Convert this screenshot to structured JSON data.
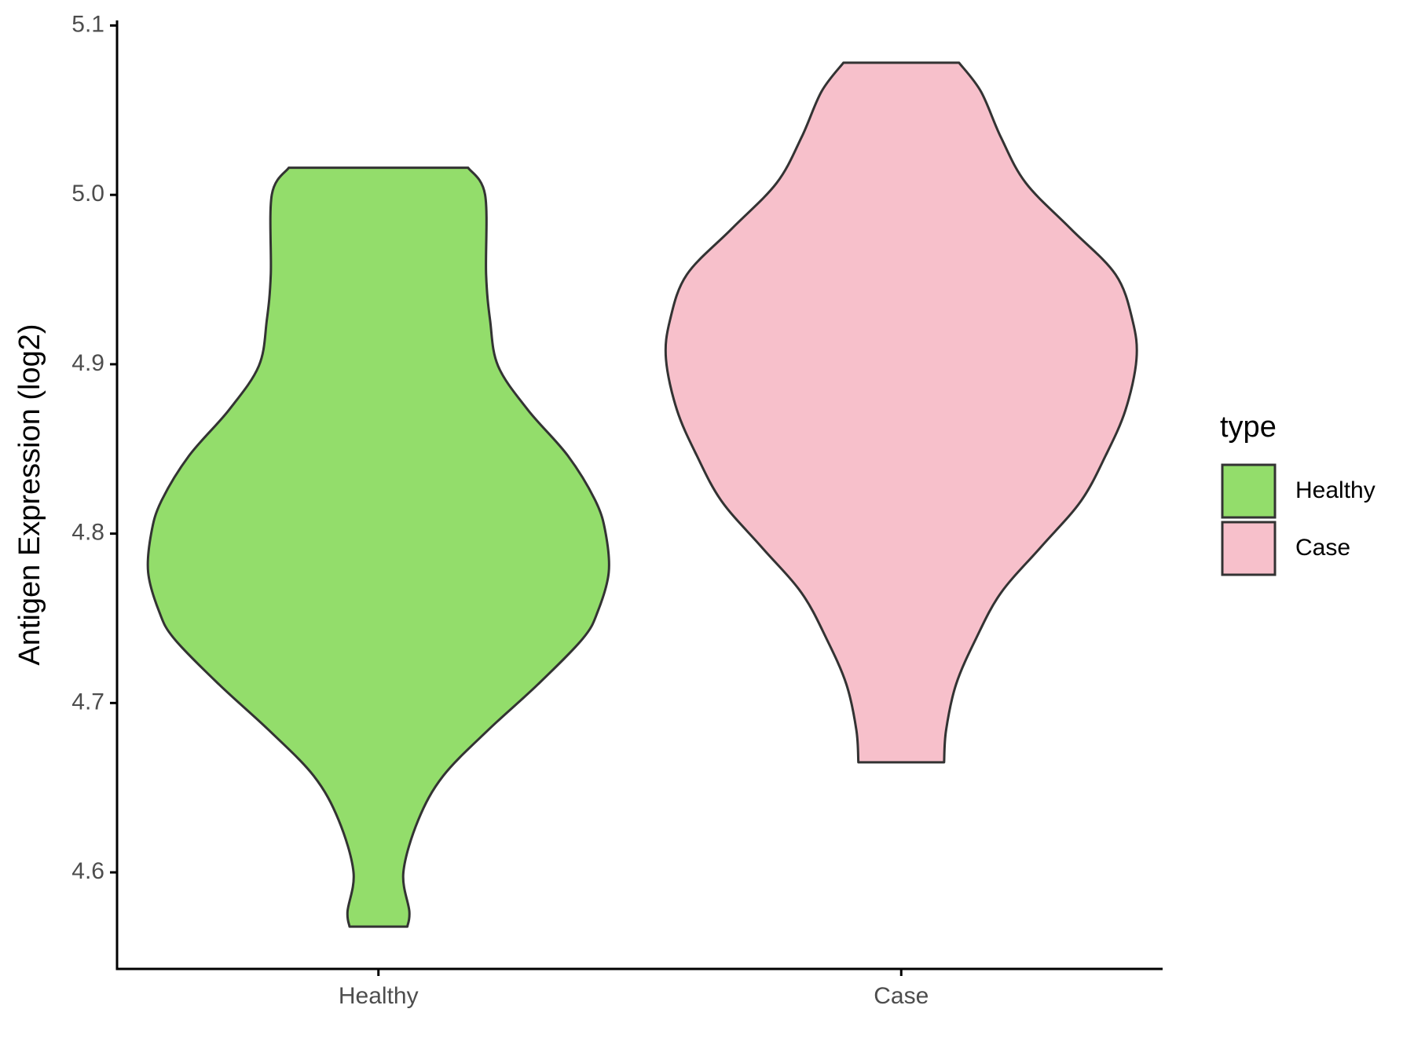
{
  "chart_data": {
    "type": "violin",
    "y_label": "Antigen Expression (log2)",
    "categories": [
      "Healthy",
      "Case"
    ],
    "legend_title": "type",
    "legend_position": "right",
    "ylim": [
      4.543,
      5.103
    ],
    "yticks": [
      {
        "value": 4.6,
        "label": "4.6"
      },
      {
        "value": 4.7,
        "label": "4.7"
      },
      {
        "value": 4.8,
        "label": "4.8"
      },
      {
        "value": 4.9,
        "label": "4.9"
      },
      {
        "value": 5.0,
        "label": "5.0"
      },
      {
        "value": 5.1,
        "label": "5.1"
      }
    ],
    "series": [
      {
        "name": "Healthy",
        "color": "#93dd6b",
        "y": [
          5.016,
          5.0,
          4.953,
          4.926,
          4.899,
          4.873,
          4.846,
          4.819,
          4.8,
          4.777,
          4.754,
          4.738,
          4.711,
          4.684,
          4.657,
          4.631,
          4.6,
          4.577,
          4.568
        ],
        "density": [
          90,
          107,
          108,
          112,
          120,
          150,
          190,
          218,
          228,
          231,
          220,
          205,
          160,
          110,
          65,
          40,
          25,
          31,
          29
        ]
      },
      {
        "name": "Case",
        "color": "#f7c0cb",
        "y": [
          5.078,
          5.061,
          5.034,
          5.007,
          4.98,
          4.953,
          4.926,
          4.903,
          4.873,
          4.846,
          4.819,
          4.792,
          4.765,
          4.738,
          4.711,
          4.684,
          4.665
        ],
        "density": [
          58,
          80,
          100,
          125,
          170,
          215,
          232,
          236,
          225,
          205,
          180,
          140,
          100,
          75,
          55,
          45,
          43
        ]
      }
    ]
  }
}
